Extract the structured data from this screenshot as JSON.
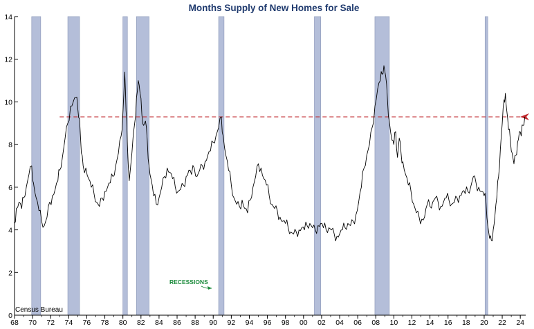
{
  "chart_data": {
    "type": "line",
    "title": "Months Supply of New Homes for Sale",
    "source": "Census Bureau",
    "recession_label": "RECESSIONS",
    "xlim": [
      1968,
      2024.6
    ],
    "ylim": [
      0,
      14
    ],
    "x_ticks": [
      1968,
      1970,
      1972,
      1974,
      1976,
      1978,
      1980,
      1982,
      1984,
      1986,
      1988,
      1990,
      1992,
      1994,
      1996,
      1998,
      2000,
      2002,
      2004,
      2006,
      2008,
      2010,
      2012,
      2014,
      2016,
      2018,
      2020,
      2022,
      2024
    ],
    "x_tick_labels": [
      "68",
      "70",
      "72",
      "74",
      "76",
      "78",
      "80",
      "82",
      "84",
      "86",
      "88",
      "90",
      "92",
      "94",
      "96",
      "98",
      "00",
      "02",
      "04",
      "06",
      "08",
      "10",
      "12",
      "14",
      "16",
      "18",
      "20",
      "22",
      "24"
    ],
    "y_ticks": [
      0,
      2,
      4,
      6,
      8,
      10,
      12,
      14
    ],
    "y_tick_labels": [
      "0",
      "2",
      "4",
      "6",
      "8",
      "10",
      "12",
      "14"
    ],
    "grid": false,
    "reference_line": {
      "y": 9.3,
      "style": "dashed",
      "color": "#c0282d"
    },
    "recessions": [
      {
        "start": 1969.9,
        "end": 1970.9
      },
      {
        "start": 1973.9,
        "end": 1975.2
      },
      {
        "start": 1980.0,
        "end": 1980.5
      },
      {
        "start": 1981.5,
        "end": 1982.9
      },
      {
        "start": 1990.6,
        "end": 1991.2
      },
      {
        "start": 2001.2,
        "end": 2001.9
      },
      {
        "start": 2007.9,
        "end": 2009.5
      },
      {
        "start": 2020.1,
        "end": 2020.4
      }
    ],
    "series": [
      {
        "color": "#000000",
        "points": [
          [
            1968.0,
            4.3
          ],
          [
            1968.2,
            5.0
          ],
          [
            1968.5,
            5.3
          ],
          [
            1968.8,
            5.0
          ],
          [
            1969.0,
            5.5
          ],
          [
            1969.3,
            6.0
          ],
          [
            1969.6,
            6.6
          ],
          [
            1969.9,
            7.0
          ],
          [
            1970.1,
            6.2
          ],
          [
            1970.4,
            5.5
          ],
          [
            1970.7,
            4.9
          ],
          [
            1971.0,
            4.4
          ],
          [
            1971.3,
            4.2
          ],
          [
            1971.6,
            4.6
          ],
          [
            1971.9,
            5.3
          ],
          [
            1972.2,
            5.6
          ],
          [
            1972.5,
            5.9
          ],
          [
            1972.8,
            6.3
          ],
          [
            1973.0,
            6.8
          ],
          [
            1973.3,
            7.4
          ],
          [
            1973.6,
            8.3
          ],
          [
            1973.9,
            9.0
          ],
          [
            1974.2,
            9.8
          ],
          [
            1974.5,
            10.0
          ],
          [
            1974.8,
            10.2
          ],
          [
            1975.0,
            9.7
          ],
          [
            1975.2,
            9.2
          ],
          [
            1975.4,
            7.6
          ],
          [
            1975.6,
            7.0
          ],
          [
            1975.9,
            6.9
          ],
          [
            1976.2,
            6.4
          ],
          [
            1976.5,
            6.0
          ],
          [
            1976.8,
            5.7
          ],
          [
            1977.1,
            5.3
          ],
          [
            1977.4,
            5.1
          ],
          [
            1977.7,
            5.5
          ],
          [
            1978.0,
            5.8
          ],
          [
            1978.3,
            6.0
          ],
          [
            1978.6,
            6.2
          ],
          [
            1978.9,
            6.5
          ],
          [
            1979.2,
            7.0
          ],
          [
            1979.5,
            7.6
          ],
          [
            1979.8,
            8.4
          ],
          [
            1980.0,
            9.5
          ],
          [
            1980.2,
            11.4
          ],
          [
            1980.35,
            9.6
          ],
          [
            1980.5,
            8.0
          ],
          [
            1980.7,
            6.3
          ],
          [
            1981.0,
            7.6
          ],
          [
            1981.3,
            9.0
          ],
          [
            1981.5,
            10.2
          ],
          [
            1981.7,
            11.0
          ],
          [
            1981.9,
            10.4
          ],
          [
            1982.1,
            9.4
          ],
          [
            1982.3,
            8.9
          ],
          [
            1982.5,
            9.1
          ],
          [
            1982.7,
            8.2
          ],
          [
            1982.9,
            7.0
          ],
          [
            1983.1,
            6.4
          ],
          [
            1983.4,
            5.6
          ],
          [
            1983.7,
            5.2
          ],
          [
            1984.0,
            5.5
          ],
          [
            1984.3,
            6.0
          ],
          [
            1984.6,
            6.5
          ],
          [
            1984.9,
            6.9
          ],
          [
            1985.2,
            6.7
          ],
          [
            1985.5,
            6.4
          ],
          [
            1985.8,
            6.0
          ],
          [
            1986.1,
            5.8
          ],
          [
            1986.4,
            5.9
          ],
          [
            1986.7,
            6.1
          ],
          [
            1987.0,
            6.5
          ],
          [
            1987.3,
            6.8
          ],
          [
            1987.6,
            6.6
          ],
          [
            1987.9,
            6.9
          ],
          [
            1988.2,
            6.5
          ],
          [
            1988.5,
            6.8
          ],
          [
            1988.8,
            7.0
          ],
          [
            1989.1,
            7.2
          ],
          [
            1989.4,
            7.5
          ],
          [
            1989.7,
            7.7
          ],
          [
            1990.0,
            8.1
          ],
          [
            1990.3,
            8.4
          ],
          [
            1990.6,
            8.8
          ],
          [
            1990.9,
            9.3
          ],
          [
            1991.1,
            8.4
          ],
          [
            1991.4,
            7.5
          ],
          [
            1991.7,
            6.8
          ],
          [
            1992.0,
            6.1
          ],
          [
            1992.3,
            5.5
          ],
          [
            1992.6,
            5.2
          ],
          [
            1992.9,
            5.1
          ],
          [
            1993.2,
            5.4
          ],
          [
            1993.5,
            5.0
          ],
          [
            1993.8,
            4.8
          ],
          [
            1994.1,
            5.4
          ],
          [
            1994.4,
            6.0
          ],
          [
            1994.7,
            6.5
          ],
          [
            1995.0,
            7.1
          ],
          [
            1995.3,
            6.9
          ],
          [
            1995.6,
            6.4
          ],
          [
            1995.9,
            6.1
          ],
          [
            1996.2,
            5.6
          ],
          [
            1996.5,
            5.2
          ],
          [
            1996.8,
            5.0
          ],
          [
            1997.1,
            4.9
          ],
          [
            1997.4,
            4.6
          ],
          [
            1997.7,
            4.4
          ],
          [
            1998.0,
            4.3
          ],
          [
            1998.3,
            4.1
          ],
          [
            1998.6,
            3.9
          ],
          [
            1998.9,
            3.8
          ],
          [
            1999.2,
            3.9
          ],
          [
            1999.5,
            4.0
          ],
          [
            1999.8,
            4.1
          ],
          [
            2000.1,
            4.0
          ],
          [
            2000.4,
            4.2
          ],
          [
            2000.7,
            4.3
          ],
          [
            2001.0,
            4.1
          ],
          [
            2001.3,
            4.0
          ],
          [
            2001.6,
            4.2
          ],
          [
            2001.9,
            4.3
          ],
          [
            2002.2,
            4.1
          ],
          [
            2002.5,
            4.0
          ],
          [
            2002.8,
            4.1
          ],
          [
            2003.1,
            4.0
          ],
          [
            2003.4,
            3.8
          ],
          [
            2003.7,
            3.7
          ],
          [
            2004.0,
            3.8
          ],
          [
            2004.3,
            4.0
          ],
          [
            2004.6,
            4.1
          ],
          [
            2004.9,
            4.3
          ],
          [
            2005.2,
            4.2
          ],
          [
            2005.5,
            4.4
          ],
          [
            2005.8,
            4.7
          ],
          [
            2006.1,
            5.3
          ],
          [
            2006.4,
            6.0
          ],
          [
            2006.7,
            6.9
          ],
          [
            2007.0,
            7.5
          ],
          [
            2007.3,
            8.0
          ],
          [
            2007.6,
            8.8
          ],
          [
            2007.9,
            9.8
          ],
          [
            2008.2,
            10.6
          ],
          [
            2008.5,
            11.0
          ],
          [
            2008.7,
            11.3
          ],
          [
            2008.9,
            11.7
          ],
          [
            2009.1,
            11.2
          ],
          [
            2009.3,
            10.1
          ],
          [
            2009.5,
            9.1
          ],
          [
            2009.8,
            8.2
          ],
          [
            2010.0,
            8.0
          ],
          [
            2010.2,
            8.6
          ],
          [
            2010.4,
            7.4
          ],
          [
            2010.6,
            8.3
          ],
          [
            2010.8,
            7.6
          ],
          [
            2011.0,
            7.2
          ],
          [
            2011.3,
            6.6
          ],
          [
            2011.6,
            6.1
          ],
          [
            2011.9,
            5.8
          ],
          [
            2012.2,
            5.2
          ],
          [
            2012.5,
            4.8
          ],
          [
            2012.8,
            4.6
          ],
          [
            2013.1,
            4.5
          ],
          [
            2013.4,
            4.6
          ],
          [
            2013.7,
            5.2
          ],
          [
            2014.0,
            5.1
          ],
          [
            2014.3,
            5.3
          ],
          [
            2014.6,
            5.5
          ],
          [
            2014.9,
            5.3
          ],
          [
            2015.2,
            5.1
          ],
          [
            2015.5,
            5.3
          ],
          [
            2015.8,
            5.5
          ],
          [
            2016.1,
            5.4
          ],
          [
            2016.4,
            5.2
          ],
          [
            2016.7,
            5.3
          ],
          [
            2017.0,
            5.5
          ],
          [
            2017.3,
            5.6
          ],
          [
            2017.6,
            5.8
          ],
          [
            2017.9,
            5.7
          ],
          [
            2018.2,
            5.8
          ],
          [
            2018.5,
            6.0
          ],
          [
            2018.8,
            6.5
          ],
          [
            2019.1,
            6.2
          ],
          [
            2019.4,
            6.0
          ],
          [
            2019.7,
            5.8
          ],
          [
            2020.0,
            5.6
          ],
          [
            2020.2,
            5.3
          ],
          [
            2020.4,
            4.2
          ],
          [
            2020.6,
            3.6
          ],
          [
            2020.8,
            3.5
          ],
          [
            2021.0,
            4.0
          ],
          [
            2021.2,
            4.7
          ],
          [
            2021.4,
            5.5
          ],
          [
            2021.6,
            6.5
          ],
          [
            2021.8,
            7.8
          ],
          [
            2022.0,
            9.0
          ],
          [
            2022.2,
            10.1
          ],
          [
            2022.35,
            10.4
          ],
          [
            2022.5,
            9.6
          ],
          [
            2022.7,
            8.7
          ],
          [
            2022.9,
            8.2
          ],
          [
            2023.1,
            7.6
          ],
          [
            2023.3,
            7.1
          ],
          [
            2023.5,
            7.5
          ],
          [
            2023.7,
            8.1
          ],
          [
            2023.9,
            8.6
          ],
          [
            2024.1,
            8.4
          ],
          [
            2024.3,
            8.9
          ],
          [
            2024.5,
            9.3
          ]
        ]
      }
    ]
  }
}
